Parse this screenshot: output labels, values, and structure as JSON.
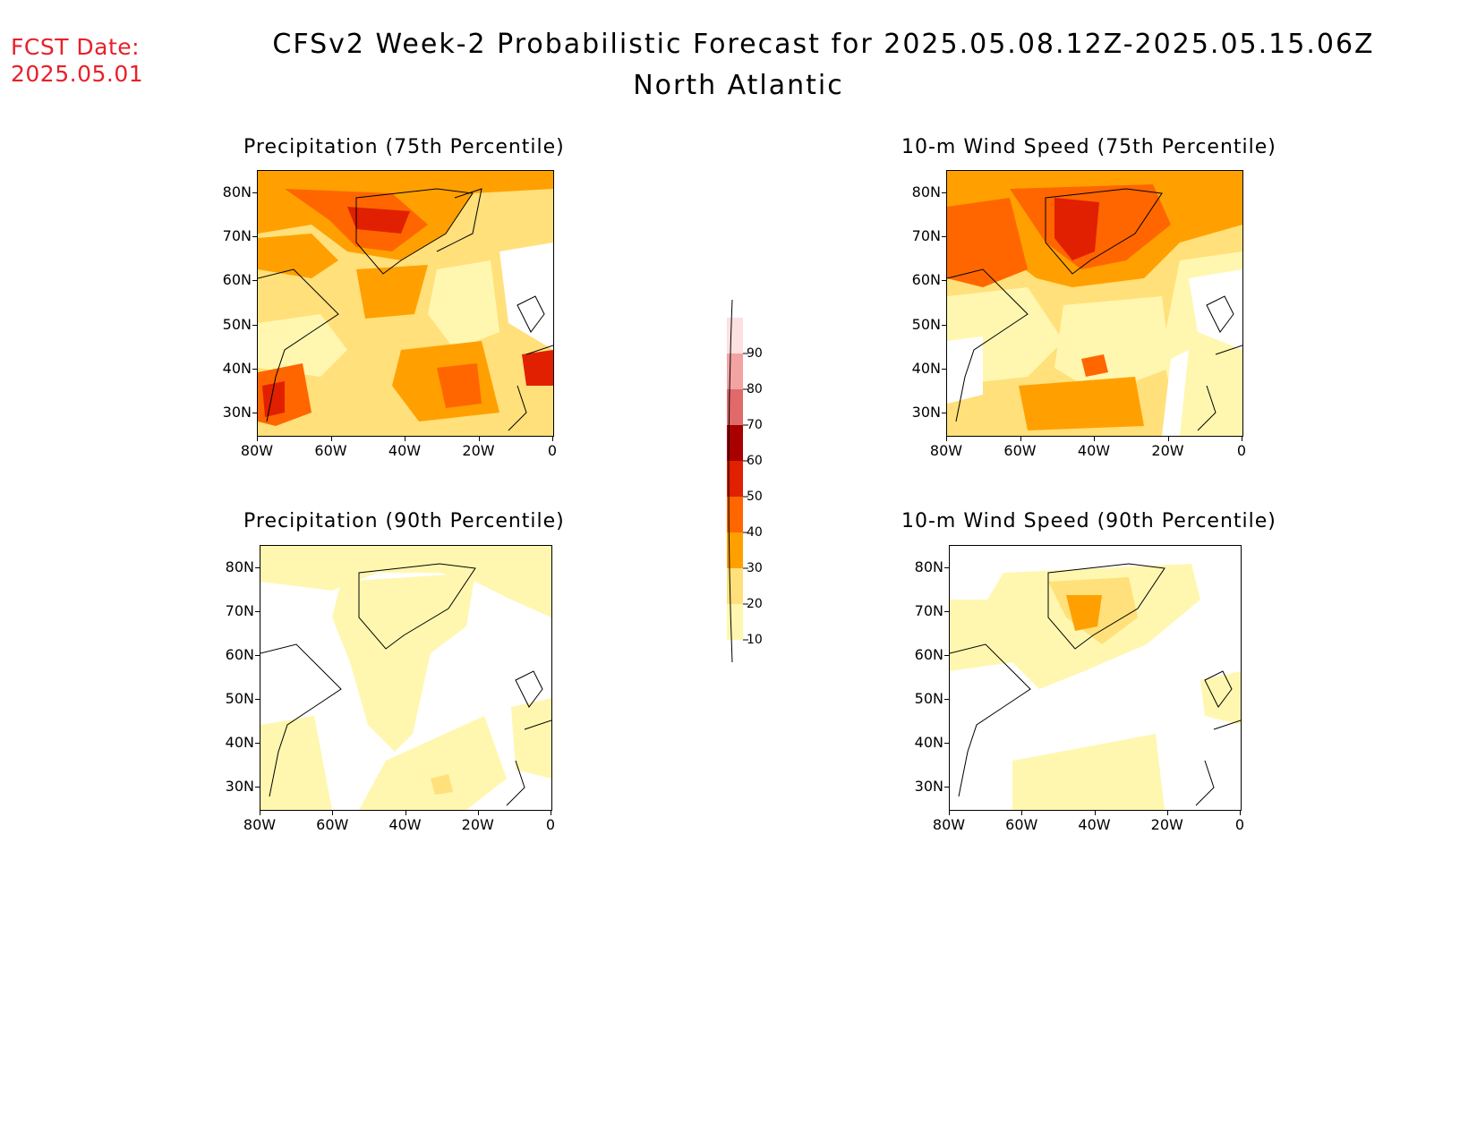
{
  "header": {
    "fcst_label": "FCST Date:",
    "fcst_date": "2025.05.01",
    "title": "CFSv2 Week-2 Probabilistic Forecast for 2025.05.08.12Z-2025.05.15.06Z",
    "subtitle": "North Atlantic"
  },
  "panels": [
    {
      "title": "Precipitation (75th Percentile)",
      "level": "high"
    },
    {
      "title": "10-m Wind Speed (75th Percentile)",
      "level": "high"
    },
    {
      "title": "Precipitation (90th Percentile)",
      "level": "low"
    },
    {
      "title": "10-m Wind Speed (90th Percentile)",
      "level": "low"
    }
  ],
  "axes": {
    "lat_labels": [
      "80N",
      "70N",
      "60N",
      "50N",
      "40N",
      "30N"
    ],
    "lon_labels": [
      "80W",
      "60W",
      "40W",
      "20W",
      "0"
    ]
  },
  "colorbar": {
    "labels": [
      "90",
      "80",
      "70",
      "60",
      "50",
      "40",
      "30",
      "20",
      "10"
    ],
    "colors": [
      "#fde0e0",
      "#f4a3a3",
      "#e06a6a",
      "#a80000",
      "#e02000",
      "#ff6600",
      "#ffa000",
      "#ffe07a",
      "#fff7b0"
    ]
  }
}
